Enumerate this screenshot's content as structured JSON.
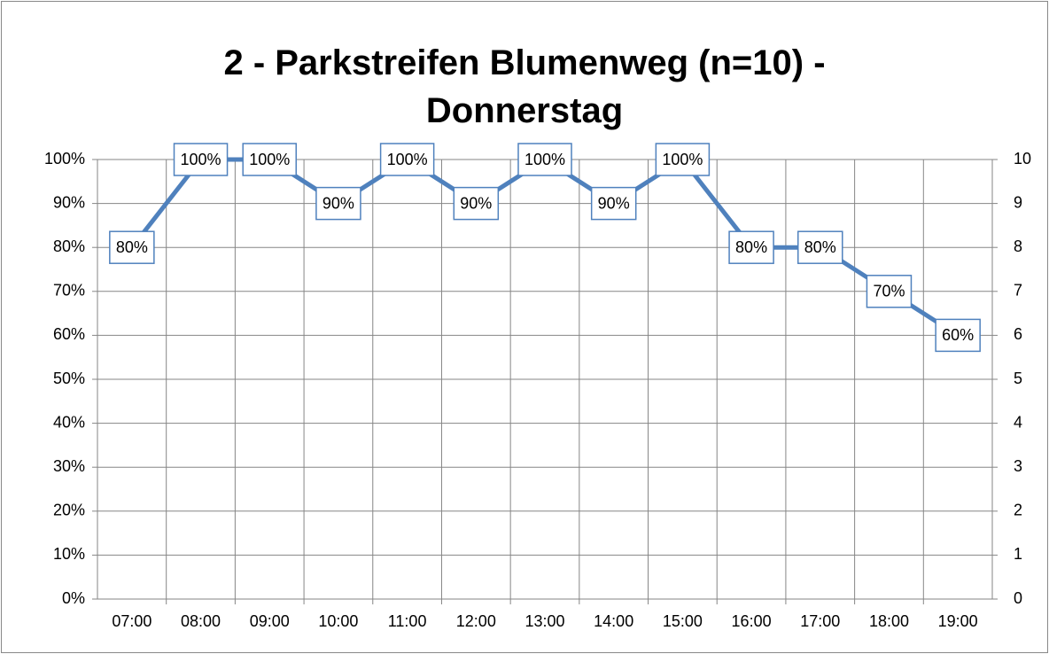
{
  "chart_data": {
    "type": "line",
    "title": "2 - Parkstreifen Blumenweg (n=10) - Donnerstag",
    "categories": [
      "07:00",
      "08:00",
      "09:00",
      "10:00",
      "11:00",
      "12:00",
      "13:00",
      "14:00",
      "15:00",
      "16:00",
      "17:00",
      "18:00",
      "19:00"
    ],
    "series": [
      {
        "color": "#4f81bd",
        "values": [
          80,
          100,
          100,
          90,
          100,
          90,
          100,
          90,
          100,
          80,
          80,
          70,
          60
        ],
        "value_labels": [
          "80%",
          "100%",
          "100%",
          "90%",
          "100%",
          "90%",
          "100%",
          "90%",
          "100%",
          "80%",
          "80%",
          "70%",
          "60%"
        ]
      }
    ],
    "ylim": [
      0,
      100
    ],
    "yticks": [
      {
        "value": 0,
        "label": "0%"
      },
      {
        "value": 10,
        "label": "10%"
      },
      {
        "value": 20,
        "label": "20%"
      },
      {
        "value": 30,
        "label": "30%"
      },
      {
        "value": 40,
        "label": "40%"
      },
      {
        "value": 50,
        "label": "50%"
      },
      {
        "value": 60,
        "label": "60%"
      },
      {
        "value": 70,
        "label": "70%"
      },
      {
        "value": 80,
        "label": "80%"
      },
      {
        "value": 90,
        "label": "90%"
      },
      {
        "value": 100,
        "label": "100%"
      }
    ],
    "y2lim": [
      0,
      10
    ],
    "y2ticks": [
      0,
      1,
      2,
      3,
      4,
      5,
      6,
      7,
      8,
      9,
      10
    ],
    "grid": true
  }
}
